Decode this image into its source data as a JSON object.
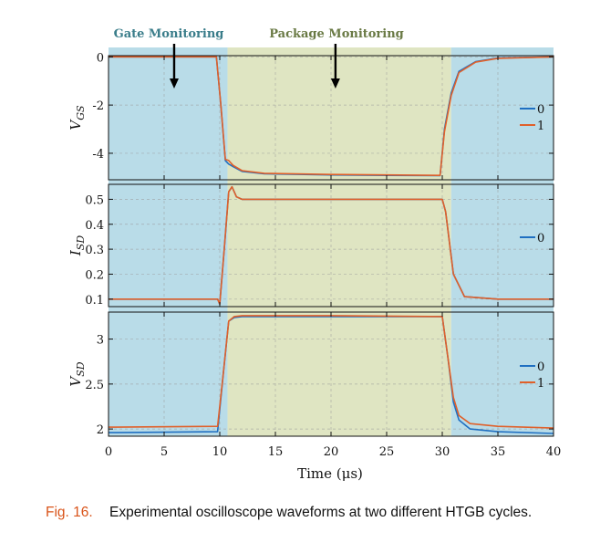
{
  "colors": {
    "gate_region": "#b9dce8",
    "package_region": "#dfe5c2",
    "series_0": "#1f6fc1",
    "series_1": "#e0602a",
    "gate_title": "#3a7d8a",
    "package_title": "#6a7a45",
    "grid": "#9a9a9a"
  },
  "regions": {
    "gate_label": "Gate Monitoring",
    "package_label": "Package Monitoring"
  },
  "caption": {
    "label": "Fig. 16.",
    "text": "Experimental oscilloscope waveforms at two different HTGB cycles."
  },
  "chart_data": {
    "type": "line",
    "xlabel": "Time (μs)",
    "xlim": [
      0,
      40
    ],
    "xticks": [
      0,
      5,
      10,
      15,
      20,
      25,
      30,
      35,
      40
    ],
    "regions": [
      {
        "name": "Gate Monitoring",
        "x": [
          0,
          10.7
        ]
      },
      {
        "name": "Package Monitoring",
        "x": [
          10.7,
          30.8
        ]
      },
      {
        "name": "Gate Monitoring",
        "x": [
          30.8,
          40
        ]
      }
    ],
    "arrows_x": [
      5.9,
      20.4
    ],
    "panels": [
      {
        "ylabel": "V_GS",
        "ylim": [
          -5.1,
          0.05
        ],
        "yticks": [
          0,
          -2,
          -4
        ],
        "ytick_labels": [
          "0",
          "-2",
          "-4"
        ],
        "legend": [
          "0",
          "1"
        ],
        "series": [
          {
            "name": "0",
            "x": [
              0,
              9.7,
              10.1,
              10.5,
              10.8,
              11.2,
              12,
              14,
              20,
              25,
              29.8,
              30.2,
              30.8,
              31.5,
              33,
              35,
              40
            ],
            "y": [
              0.0,
              0.0,
              -2.0,
              -4.3,
              -4.45,
              -4.55,
              -4.75,
              -4.85,
              -4.9,
              -4.92,
              -4.93,
              -3.0,
              -1.5,
              -0.6,
              -0.2,
              -0.05,
              0.0
            ]
          },
          {
            "name": "1",
            "x": [
              0,
              9.7,
              10.1,
              10.5,
              10.8,
              11.2,
              12,
              14,
              20,
              25,
              29.8,
              30.2,
              30.8,
              31.5,
              33,
              35,
              40
            ],
            "y": [
              0.0,
              0.0,
              -2.0,
              -4.25,
              -4.3,
              -4.5,
              -4.72,
              -4.83,
              -4.88,
              -4.9,
              -4.92,
              -3.1,
              -1.6,
              -0.65,
              -0.22,
              -0.06,
              0.0
            ]
          }
        ]
      },
      {
        "ylabel": "I_SD",
        "ylim": [
          0.07,
          0.56
        ],
        "yticks": [
          0.1,
          0.2,
          0.3,
          0.4,
          0.5
        ],
        "ytick_labels": [
          "0.1",
          "0.2",
          "0.3",
          "0.4",
          "0.5"
        ],
        "legend": [
          "0"
        ],
        "series": [
          {
            "name": "0",
            "x": [
              0,
              9.8,
              10.0,
              10.4,
              10.8,
              11.1,
              11.5,
              12,
              20,
              30,
              30.3,
              31,
              32,
              35,
              40
            ],
            "y": [
              0.1,
              0.1,
              0.08,
              0.3,
              0.53,
              0.55,
              0.51,
              0.5,
              0.5,
              0.5,
              0.45,
              0.2,
              0.11,
              0.1,
              0.1
            ]
          },
          {
            "name": "1",
            "x": [
              0,
              9.8,
              10.0,
              10.4,
              10.8,
              11.1,
              11.5,
              12,
              20,
              30,
              30.3,
              31,
              32,
              35,
              40
            ],
            "y": [
              0.1,
              0.1,
              0.08,
              0.3,
              0.53,
              0.55,
              0.51,
              0.5,
              0.5,
              0.5,
              0.45,
              0.2,
              0.11,
              0.1,
              0.1
            ]
          }
        ]
      },
      {
        "ylabel": "V_SD",
        "ylim": [
          1.92,
          3.3
        ],
        "yticks": [
          2,
          2.5,
          3
        ],
        "ytick_labels": [
          "2",
          "2.5",
          "3"
        ],
        "legend": [
          "0",
          "1"
        ],
        "series": [
          {
            "name": "0",
            "x": [
              0,
              9.8,
              10.3,
              10.8,
              11.3,
              12,
              20,
              30,
              30.5,
              31,
              31.5,
              32.5,
              35,
              40
            ],
            "y": [
              1.96,
              1.97,
              2.6,
              3.2,
              3.24,
              3.25,
              3.25,
              3.25,
              2.8,
              2.3,
              2.1,
              2.0,
              1.97,
              1.95
            ]
          },
          {
            "name": "1",
            "x": [
              0,
              9.8,
              10.3,
              10.8,
              11.3,
              12,
              20,
              30,
              30.5,
              31,
              31.5,
              32.5,
              35,
              40
            ],
            "y": [
              2.02,
              2.03,
              2.6,
              3.2,
              3.25,
              3.26,
              3.26,
              3.25,
              2.8,
              2.35,
              2.15,
              2.06,
              2.03,
              2.01
            ]
          }
        ]
      }
    ]
  }
}
